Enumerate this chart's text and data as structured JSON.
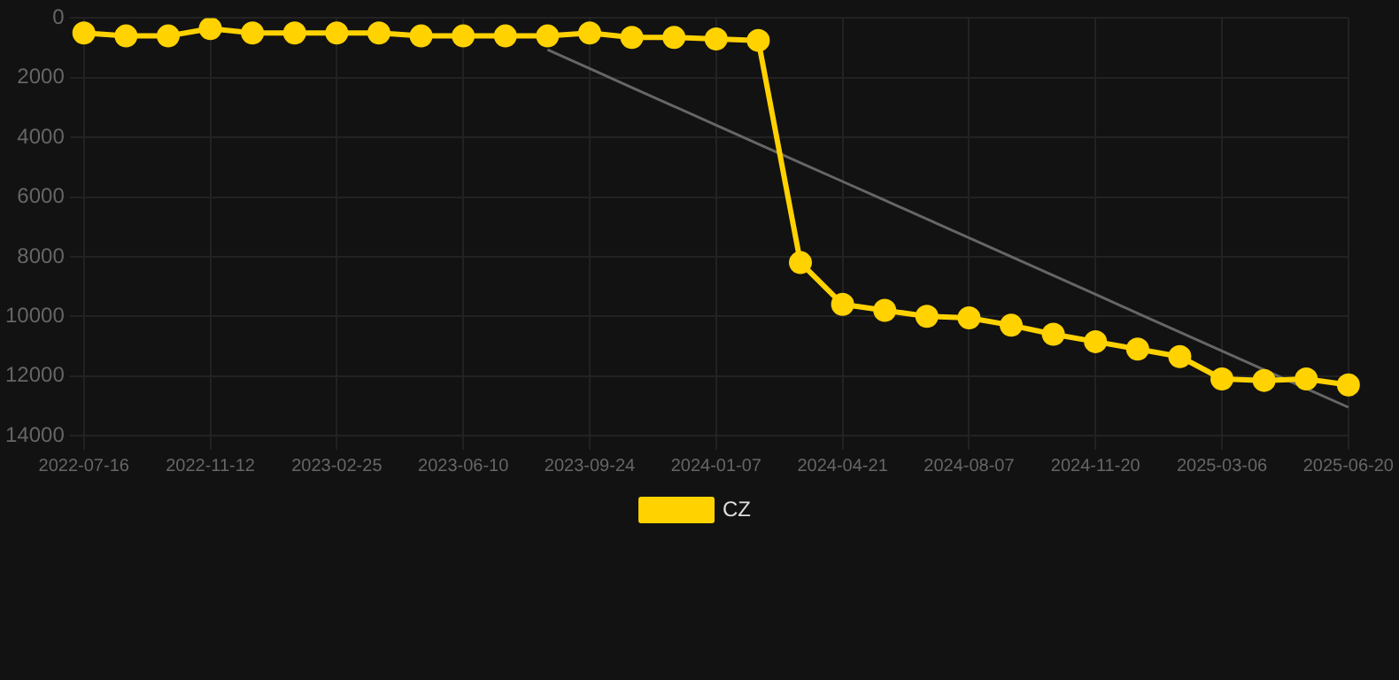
{
  "chart_data": {
    "type": "line",
    "categories": [
      "2022-07-16",
      null,
      null,
      "2022-11-12",
      null,
      null,
      "2023-02-25",
      null,
      null,
      "2023-06-10",
      null,
      null,
      "2023-09-24",
      null,
      null,
      "2024-01-07",
      null,
      null,
      "2024-04-21",
      null,
      null,
      "2024-08-07",
      null,
      null,
      "2024-11-20",
      null,
      null,
      "2025-03-06",
      null,
      null,
      "2025-06-20"
    ],
    "series": [
      {
        "name": "CZ",
        "color": "#ffd200",
        "values": [
          500,
          600,
          600,
          350,
          500,
          500,
          500,
          500,
          600,
          600,
          600,
          600,
          500,
          650,
          650,
          700,
          750,
          8200,
          9600,
          9800,
          10000,
          10050,
          10300,
          10600,
          10850,
          11100,
          11350,
          12100,
          12150,
          12100,
          12300
        ]
      },
      {
        "type": "line",
        "color": "#666666",
        "marker": "none",
        "values": [
          null,
          null,
          null,
          null,
          null,
          null,
          null,
          null,
          null,
          null,
          null,
          1060,
          1690,
          2330,
          2960,
          3590,
          4220,
          4850,
          5480,
          6110,
          6740,
          7370,
          8000,
          8630,
          9260,
          9900,
          10530,
          11160,
          11790,
          12420,
          13050
        ]
      }
    ],
    "ylim": [
      14000,
      0
    ],
    "yticks": [
      0,
      2000,
      4000,
      6000,
      8000,
      10000,
      12000,
      14000
    ],
    "grid": true,
    "legend": "bottom",
    "marker": "circle",
    "line_style": "solid"
  }
}
